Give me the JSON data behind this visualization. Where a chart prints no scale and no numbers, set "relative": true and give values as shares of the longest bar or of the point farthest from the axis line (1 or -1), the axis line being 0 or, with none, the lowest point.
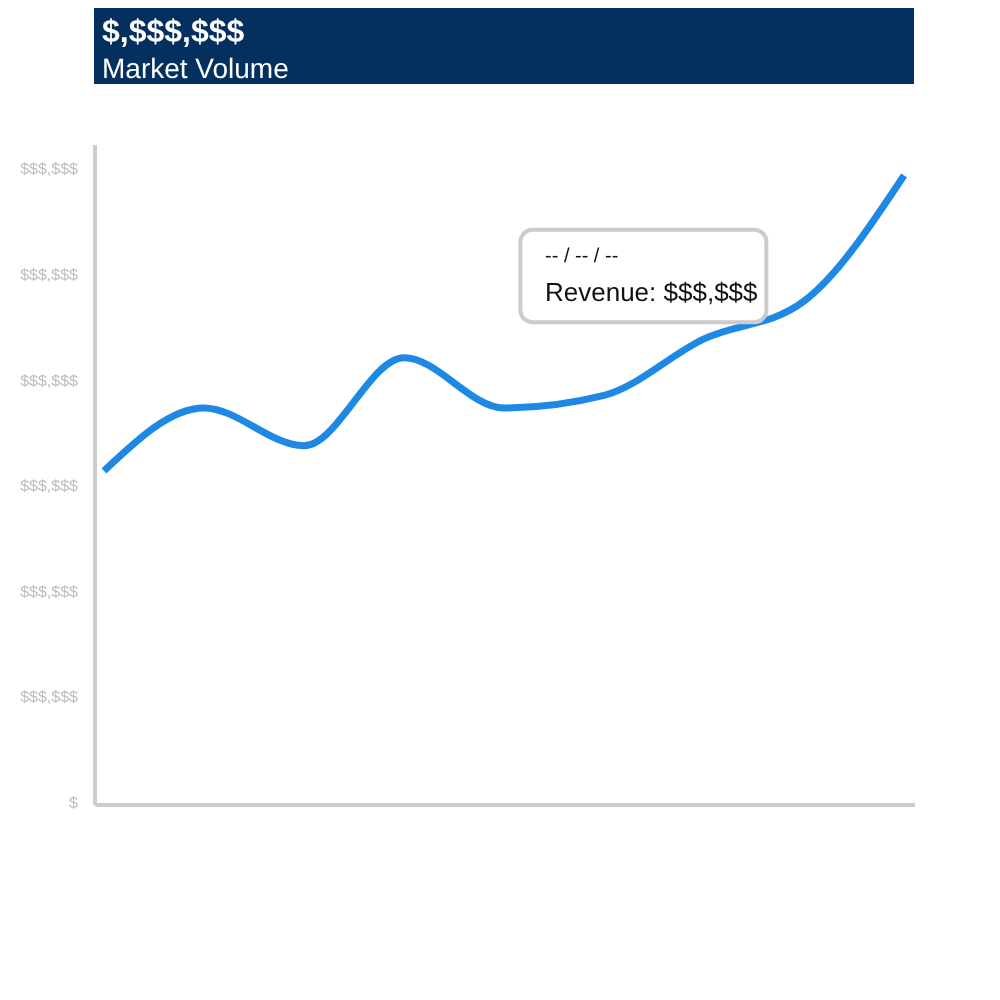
{
  "chart_data": {
    "type": "line",
    "title": "$,$$$,$$$",
    "subtitle": "Market Volume",
    "relative": true,
    "categories": [
      null,
      null,
      null,
      null,
      null,
      null,
      null,
      null,
      null
    ],
    "series": [
      {
        "color": "#1e88e5",
        "values": [
          0.53,
          0.63,
          0.57,
          0.71,
          0.63,
          0.65,
          0.74,
          0.8,
          1
        ]
      }
    ],
    "grid": false,
    "legend": false,
    "line_style": "solid",
    "annotations": [
      "$",
      "$$$,$$$",
      "$$$,$$$",
      "$$$,$$$",
      "$$$,$$$",
      "$$$,$$$",
      "$$$,$$$",
      "-- / -- / --",
      "Revenue: $$$,$$$"
    ]
  }
}
